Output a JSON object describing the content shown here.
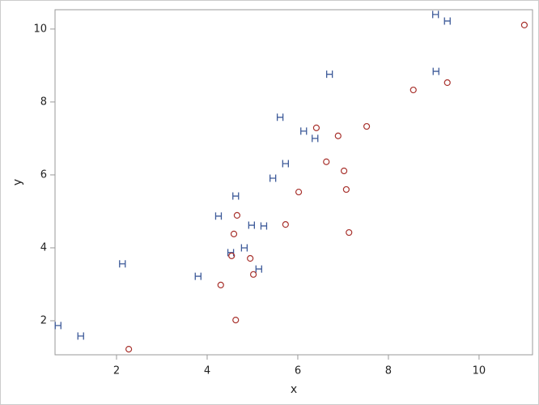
{
  "chart_data": {
    "type": "scatter",
    "x_label": "x",
    "y_label": "y",
    "xlim": [
      0.643,
      11.18
    ],
    "ylim": [
      1.067,
      10.53
    ],
    "xticks": [
      2,
      4,
      6,
      8,
      10
    ],
    "yticks": [
      2,
      4,
      6,
      8,
      10
    ],
    "series": [
      {
        "color": "#3d5a99",
        "marker": "letter-h",
        "x": [
          0.71,
          1.21,
          2.13,
          3.8,
          4.25,
          4.52,
          4.63,
          4.82,
          4.98,
          5.14,
          5.25,
          5.45,
          5.61,
          5.73,
          6.13,
          6.38,
          6.7,
          9.04,
          9.05,
          9.3
        ],
        "values": [
          1.87,
          1.58,
          3.56,
          3.22,
          4.87,
          3.87,
          5.42,
          4.0,
          4.62,
          3.42,
          4.6,
          5.91,
          7.58,
          6.31,
          7.2,
          7.0,
          8.76,
          10.4,
          8.84,
          10.22
        ]
      },
      {
        "color": "#a8322d",
        "marker": "circle",
        "x": [
          2.27,
          4.3,
          4.54,
          4.59,
          4.63,
          4.66,
          4.95,
          5.02,
          5.73,
          6.02,
          6.41,
          6.63,
          6.89,
          7.02,
          7.07,
          7.13,
          7.52,
          8.55,
          9.3,
          11.0
        ],
        "values": [
          1.22,
          2.98,
          3.78,
          4.38,
          2.02,
          4.89,
          3.71,
          3.27,
          4.64,
          5.53,
          7.29,
          6.36,
          7.07,
          6.11,
          5.6,
          4.42,
          7.33,
          8.33,
          8.53,
          10.11
        ]
      }
    ]
  }
}
